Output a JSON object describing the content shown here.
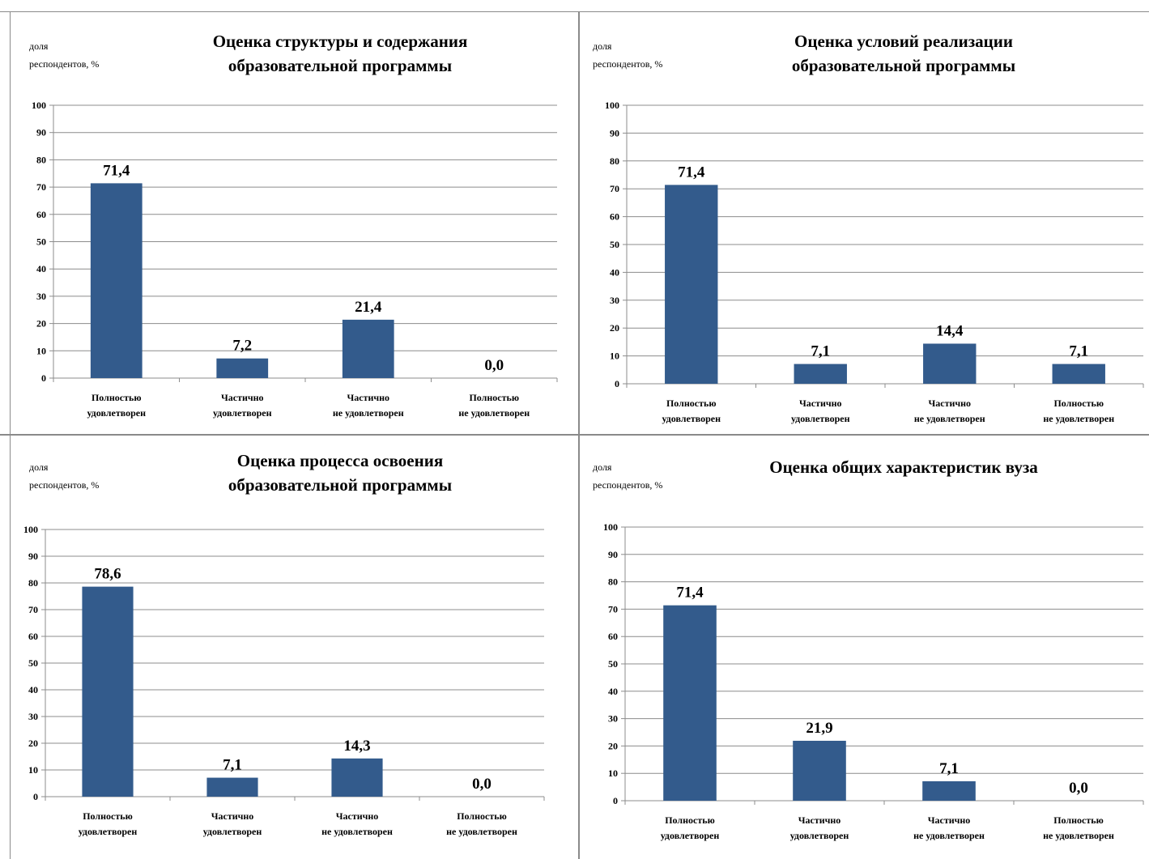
{
  "colors": {
    "bar": "#335b8c",
    "grid": "#8c8c8c",
    "axis": "#8c8c8c",
    "text": "#000000"
  },
  "chart_data": [
    {
      "type": "bar",
      "title_lines": [
        "Оценка структуры и содержания",
        "образовательной программы"
      ],
      "ylabel_lines": [
        "доля",
        "респондентов, %"
      ],
      "categories": [
        [
          "Полностью",
          "удовлетворен"
        ],
        [
          "Частично",
          "удовлетворен"
        ],
        [
          "Частично",
          "не удовлетворен"
        ],
        [
          "Полностью",
          "не удовлетворен"
        ]
      ],
      "values": [
        71.4,
        7.2,
        21.4,
        0.0
      ],
      "data_labels": [
        "71,4",
        "7,2",
        "21,4",
        "0,0"
      ],
      "yticks": [
        "0",
        "10",
        "20",
        "30",
        "40",
        "50",
        "60",
        "70",
        "80",
        "90",
        "100"
      ],
      "ylim": [
        0,
        100
      ],
      "grid": true
    },
    {
      "type": "bar",
      "title_lines": [
        "Оценка условий реализации",
        "образовательной программы"
      ],
      "ylabel_lines": [
        "доля",
        "респондентов, %"
      ],
      "categories": [
        [
          "Полностью",
          "удовлетворен"
        ],
        [
          "Частично",
          "удовлетворен"
        ],
        [
          "Частично",
          "не удовлетворен"
        ],
        [
          "Полностью",
          "не удовлетворен"
        ]
      ],
      "values": [
        71.4,
        7.1,
        14.4,
        7.1
      ],
      "data_labels": [
        "71,4",
        "7,1",
        "14,4",
        "7,1"
      ],
      "yticks": [
        "0",
        "10",
        "20",
        "30",
        "40",
        "50",
        "60",
        "70",
        "80",
        "90",
        "100"
      ],
      "ylim": [
        0,
        100
      ],
      "grid": true
    },
    {
      "type": "bar",
      "title_lines": [
        "Оценка процесса освоения",
        "образовательной программы"
      ],
      "ylabel_lines": [
        "доля",
        "респондентов, %"
      ],
      "categories": [
        [
          "Полностью",
          "удовлетворен"
        ],
        [
          "Частично",
          "удовлетворен"
        ],
        [
          "Частично",
          "не удовлетворен"
        ],
        [
          "Полностью",
          "не удовлетворен"
        ]
      ],
      "values": [
        78.6,
        7.1,
        14.3,
        0.0
      ],
      "data_labels": [
        "78,6",
        "7,1",
        "14,3",
        "0,0"
      ],
      "yticks": [
        "0",
        "10",
        "20",
        "30",
        "40",
        "50",
        "60",
        "70",
        "80",
        "90",
        "100"
      ],
      "ylim": [
        0,
        100
      ],
      "grid": true
    },
    {
      "type": "bar",
      "title_lines": [
        "Оценка общих характеристик вуза"
      ],
      "ylabel_lines": [
        "доля",
        "респондентов, %"
      ],
      "categories": [
        [
          "Полностью",
          "удовлетворен"
        ],
        [
          "Частично",
          "удовлетворен"
        ],
        [
          "Частично",
          "не удовлетворен"
        ],
        [
          "Полностью",
          "не удовлетворен"
        ]
      ],
      "values": [
        71.4,
        21.9,
        7.1,
        0.0
      ],
      "data_labels": [
        "71,4",
        "21,9",
        "7,1",
        "0,0"
      ],
      "yticks": [
        "0",
        "10",
        "20",
        "30",
        "40",
        "50",
        "60",
        "70",
        "80",
        "90",
        "100"
      ],
      "ylim": [
        0,
        100
      ],
      "grid": true
    }
  ]
}
